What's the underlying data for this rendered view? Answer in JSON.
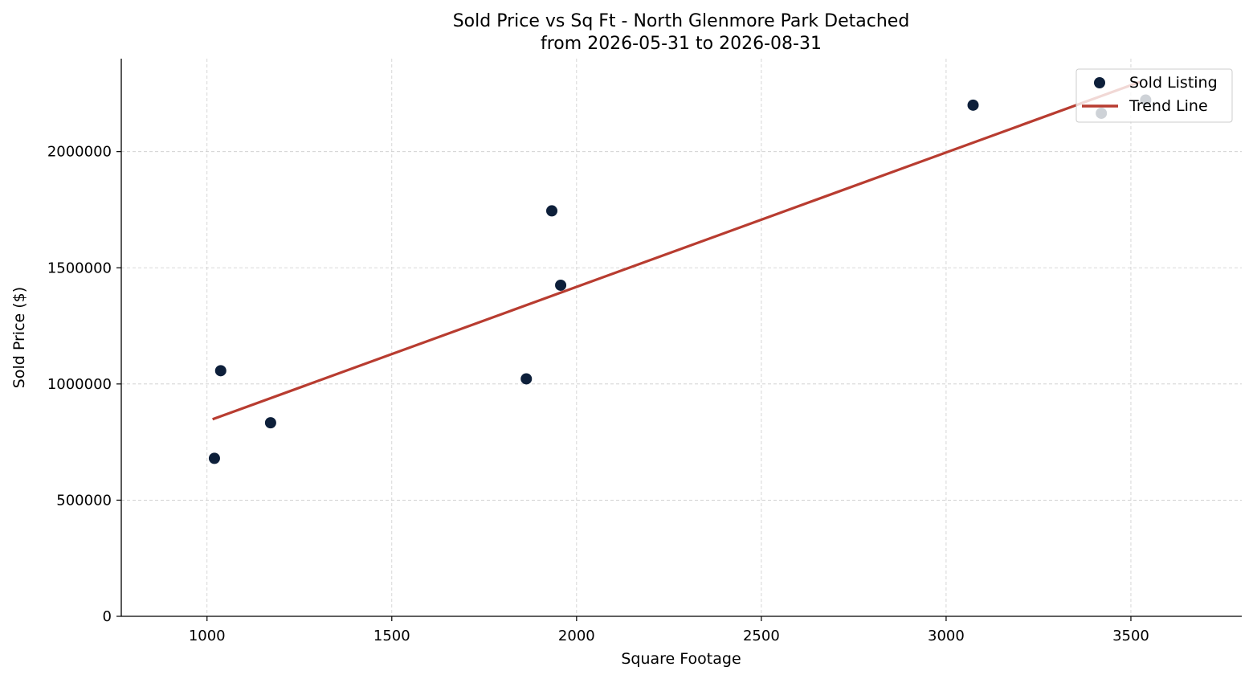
{
  "chart_data": {
    "type": "scatter",
    "title": "Sold Price vs Sq Ft - North Glenmore Park Detached",
    "subtitle": "from 2026-05-31 to 2026-08-31",
    "xlabel": "Square Footage",
    "ylabel": "Sold Price ($)",
    "xlim": [
      768,
      3800
    ],
    "ylim": [
      0,
      2400000
    ],
    "xticks": [
      1000,
      1500,
      2000,
      2500,
      3000,
      3500
    ],
    "yticks": [
      0,
      500000,
      1000000,
      1500000,
      2000000
    ],
    "xtick_labels": [
      "1000",
      "1500",
      "2000",
      "2500",
      "3000",
      "3500"
    ],
    "ytick_labels": [
      "0",
      "500000",
      "1000000",
      "1500000",
      "2000000"
    ],
    "grid": true,
    "legend_position": "top-right",
    "series": [
      {
        "name": "Sold Listing",
        "kind": "scatter",
        "color": "#0d1f3a",
        "points": [
          {
            "x": 1020,
            "y": 680000
          },
          {
            "x": 1037,
            "y": 1057000
          },
          {
            "x": 1172,
            "y": 833000
          },
          {
            "x": 1864,
            "y": 1022000
          },
          {
            "x": 1933,
            "y": 1745000
          },
          {
            "x": 1957,
            "y": 1425000
          },
          {
            "x": 3073,
            "y": 2200000
          },
          {
            "x": 3420,
            "y": 2165000
          },
          {
            "x": 3540,
            "y": 2222000
          }
        ]
      },
      {
        "name": "Trend Line",
        "kind": "line",
        "color": "#b83c30",
        "points": [
          {
            "x": 1015,
            "y": 848000
          },
          {
            "x": 3525,
            "y": 2300000
          }
        ]
      }
    ]
  }
}
